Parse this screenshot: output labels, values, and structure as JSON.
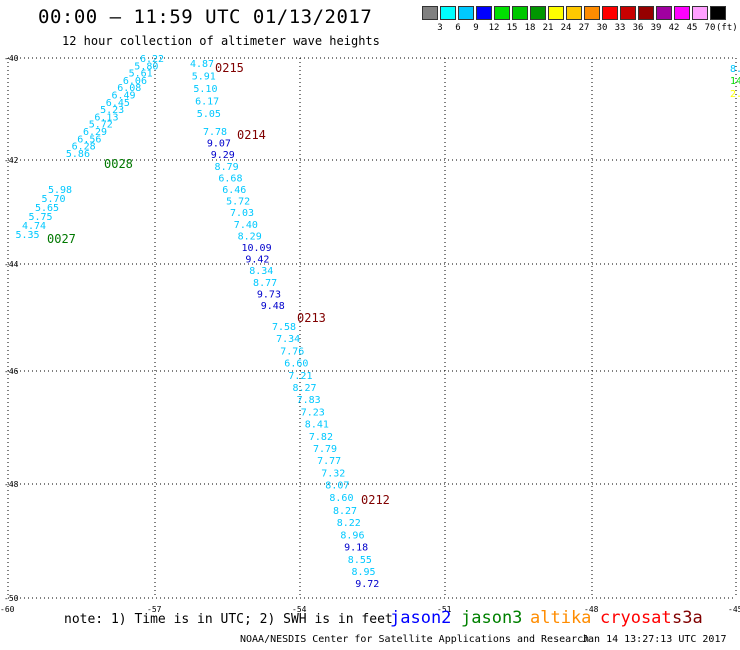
{
  "title": "00:00 – 11:59 UTC 01/13/2017",
  "subtitle": "12 hour collection of altimeter wave heights",
  "colorbar": {
    "colors": [
      "#808080",
      "#00ffff",
      "#00c8ff",
      "#0000ff",
      "#00e000",
      "#00c800",
      "#009600",
      "#ffff00",
      "#ffc800",
      "#ff8c00",
      "#ff0000",
      "#c80000",
      "#960000",
      "#a000a0",
      "#ff00ff",
      "#ffa0ff",
      "#000000"
    ],
    "ticks": [
      "3",
      "6",
      "9",
      "12",
      "15",
      "18",
      "21",
      "24",
      "27",
      "30",
      "33",
      "36",
      "39",
      "42",
      "45",
      "70"
    ],
    "unit": "(ft)"
  },
  "axes": {
    "lat_ticks": [
      "-40",
      "-42",
      "-44",
      "-46",
      "-48",
      "-50"
    ],
    "lon_ticks": [
      "-60",
      "-57",
      "-54",
      "-51",
      "-48",
      "-45"
    ]
  },
  "tracks": [
    {
      "label": "0215",
      "label_color": "#800000",
      "values": [
        "4.87",
        "5.91",
        "5.10",
        "6.17",
        "5.05"
      ]
    },
    {
      "label": "0214",
      "label_color": "#800000",
      "values": [
        "7.78",
        "9.07",
        "9.29",
        "8.79",
        "6.68",
        "6.46",
        "5.72",
        "7.03",
        "7.40",
        "8.29",
        "10.09",
        "9.42",
        "8.34",
        "8.77",
        "9.73",
        "9.48"
      ]
    },
    {
      "label": "0213",
      "label_color": "#800000",
      "values": [
        "7.58",
        "7.34",
        "7.76",
        "6.60",
        "7.21",
        "8.27",
        "7.83",
        "7.23",
        "8.41",
        "7.82",
        "7.79",
        "7.77",
        "7.32",
        "8.07",
        "8.60"
      ]
    },
    {
      "label": "0212",
      "label_color": "#800000",
      "values": [
        "8.27",
        "8.22",
        "8.96",
        "9.18",
        "8.55",
        "8.95",
        "9.72"
      ]
    },
    {
      "label": "0028",
      "label_color": "#007800",
      "values": [
        "6.22",
        "5.80",
        "5.61",
        "6.06",
        "6.08",
        "6.49",
        "6.45",
        "5.23",
        "6.13",
        "5.72",
        "6.29",
        "6.56",
        "6.28",
        "5.86"
      ]
    },
    {
      "label": "0027",
      "label_color": "#007800",
      "values": [
        "5.98",
        "5.70",
        "5.65",
        "5.75",
        "4.74",
        "5.35"
      ]
    }
  ],
  "edge_values": [
    "8.",
    "14",
    "2."
  ],
  "note": "note: 1) Time is in UTC; 2) SWH is in feet",
  "satellites": [
    {
      "name": "jason2",
      "color": "#0000ff"
    },
    {
      "name": "jason3",
      "color": "#008000"
    },
    {
      "name": "altika",
      "color": "#ff8c00"
    },
    {
      "name": "cryosat",
      "color": "#ff0000"
    },
    {
      "name": "s3a",
      "color": "#800000"
    }
  ],
  "credit": "NOAA/NESDIS Center for Satellite Applications and Research",
  "timestamp": "Jan 14 13:27:13 UTC 2017"
}
